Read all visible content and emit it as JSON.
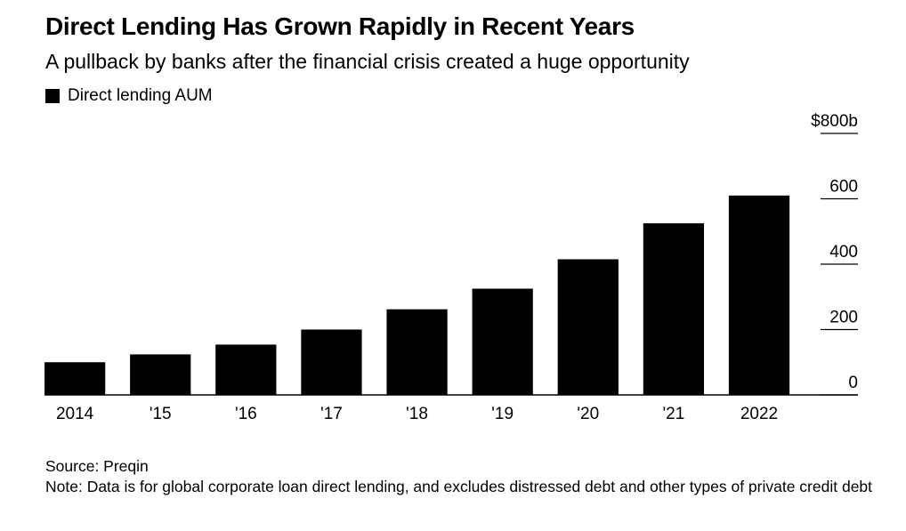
{
  "title": "Direct Lending Has Grown Rapidly in Recent Years",
  "subtitle": "A pullback by banks after the financial crisis created a huge opportunity",
  "legend": {
    "label": "Direct lending AUM",
    "color": "#000000"
  },
  "chart_data": {
    "type": "bar",
    "title": "Direct Lending Has Grown Rapidly in Recent Years",
    "subtitle": "A pullback by banks after the financial crisis created a huge opportunity",
    "categories": [
      "2014",
      "'15",
      "'16",
      "'17",
      "'18",
      "'19",
      "'20",
      "'21",
      "2022"
    ],
    "series": [
      {
        "name": "Direct lending AUM",
        "color": "#000000",
        "values": [
          100,
          124,
          154,
          200,
          262,
          325,
          415,
          525,
          610
        ]
      }
    ],
    "ylim": [
      0,
      800
    ],
    "yticks": [
      0,
      200,
      400,
      600,
      800
    ],
    "ytick_labels": [
      "0",
      "200",
      "400",
      "600",
      "$800b"
    ],
    "y_axis_side": "right",
    "xlabel": "",
    "ylabel": "",
    "grid": false,
    "legend_position": "top-left"
  },
  "footer": {
    "source": "Source: Preqin",
    "note": "Note: Data is for global corporate loan direct lending, and excludes distressed debt and other types of private credit debt"
  }
}
